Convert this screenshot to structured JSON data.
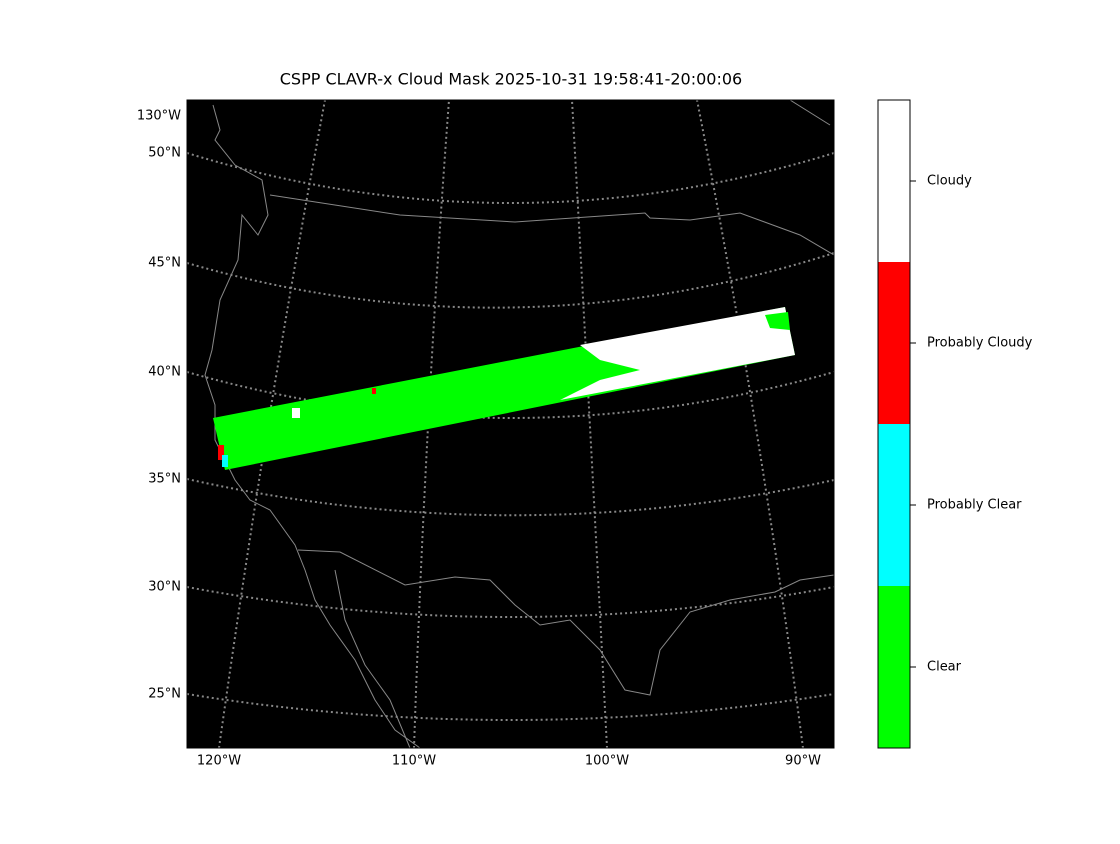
{
  "title": "CSPP CLAVR-x Cloud Mask 2025-10-31 19:58:41-20:00:06",
  "left_labels": [
    "130°W",
    "50°N",
    "45°N",
    "40°N",
    "35°N",
    "30°N",
    "25°N"
  ],
  "bottom_labels": [
    "120°W",
    "110°W",
    "100°W",
    "90°W"
  ],
  "colorbar": [
    {
      "label": "Cloudy",
      "color": "#ffffff"
    },
    {
      "label": "Probably Cloudy",
      "color": "#ff0000"
    },
    {
      "label": "Probably Clear",
      "color": "#00ffff"
    },
    {
      "label": "Clear",
      "color": "#00ff00"
    }
  ]
}
